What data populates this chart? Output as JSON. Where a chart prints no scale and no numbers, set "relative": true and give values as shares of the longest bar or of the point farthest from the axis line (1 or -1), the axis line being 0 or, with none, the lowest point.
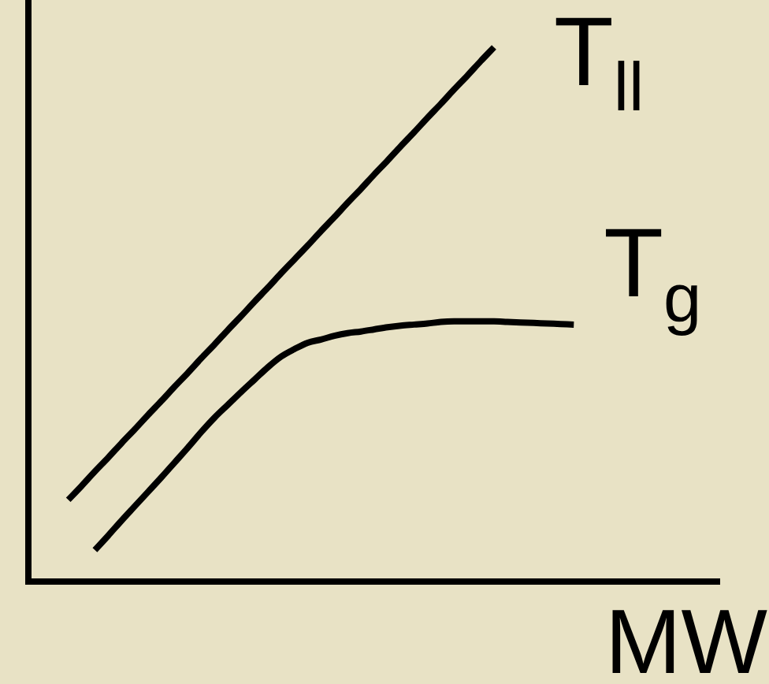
{
  "chart_data": {
    "type": "line",
    "relative": true,
    "xlabel": "MW",
    "categories": [
      null,
      null,
      null,
      null,
      null,
      null,
      null,
      null,
      null,
      null,
      null,
      null,
      null,
      null,
      null,
      null,
      null,
      null,
      null,
      null,
      null,
      null,
      null,
      null,
      null,
      null,
      null,
      null,
      null,
      null,
      null,
      null,
      null,
      null,
      null,
      null,
      null,
      null,
      null,
      null,
      null,
      null,
      null,
      null,
      null,
      null,
      null,
      null,
      null,
      null,
      null,
      null,
      null
    ],
    "series": [
      {
        "name": "T$_{ll}$",
        "color": "#000000",
        "values": [
          null,
          null,
          null,
          0.153,
          0.179,
          0.206,
          0.232,
          0.259,
          0.285,
          0.312,
          0.338,
          0.365,
          0.391,
          0.418,
          0.444,
          0.471,
          0.497,
          0.524,
          0.55,
          0.577,
          0.603,
          0.629,
          0.656,
          0.682,
          0.709,
          0.735,
          0.762,
          0.788,
          0.815,
          0.841,
          0.868,
          0.894,
          0.921,
          0.947,
          0.974,
          1.0,
          null,
          null,
          null,
          null,
          null,
          null,
          null,
          null,
          null,
          null,
          null,
          null,
          null,
          null,
          null,
          null,
          null
        ]
      },
      {
        "name": "T$_{g}$",
        "color": "#000000",
        "values": [
          null,
          null,
          null,
          null,
          null,
          0.059,
          0.086,
          0.114,
          0.141,
          0.168,
          0.195,
          0.223,
          0.251,
          0.28,
          0.307,
          0.331,
          0.355,
          0.378,
          0.401,
          0.421,
          0.435,
          0.447,
          0.453,
          0.46,
          0.465,
          0.468,
          0.472,
          0.476,
          0.479,
          0.481,
          0.483,
          0.486,
          0.487,
          0.487,
          0.487,
          0.487,
          0.486,
          0.485,
          0.484,
          0.483,
          0.482,
          0.481,
          null,
          null,
          null,
          null,
          null,
          null,
          null,
          null,
          null,
          null,
          null
        ]
      }
    ]
  }
}
